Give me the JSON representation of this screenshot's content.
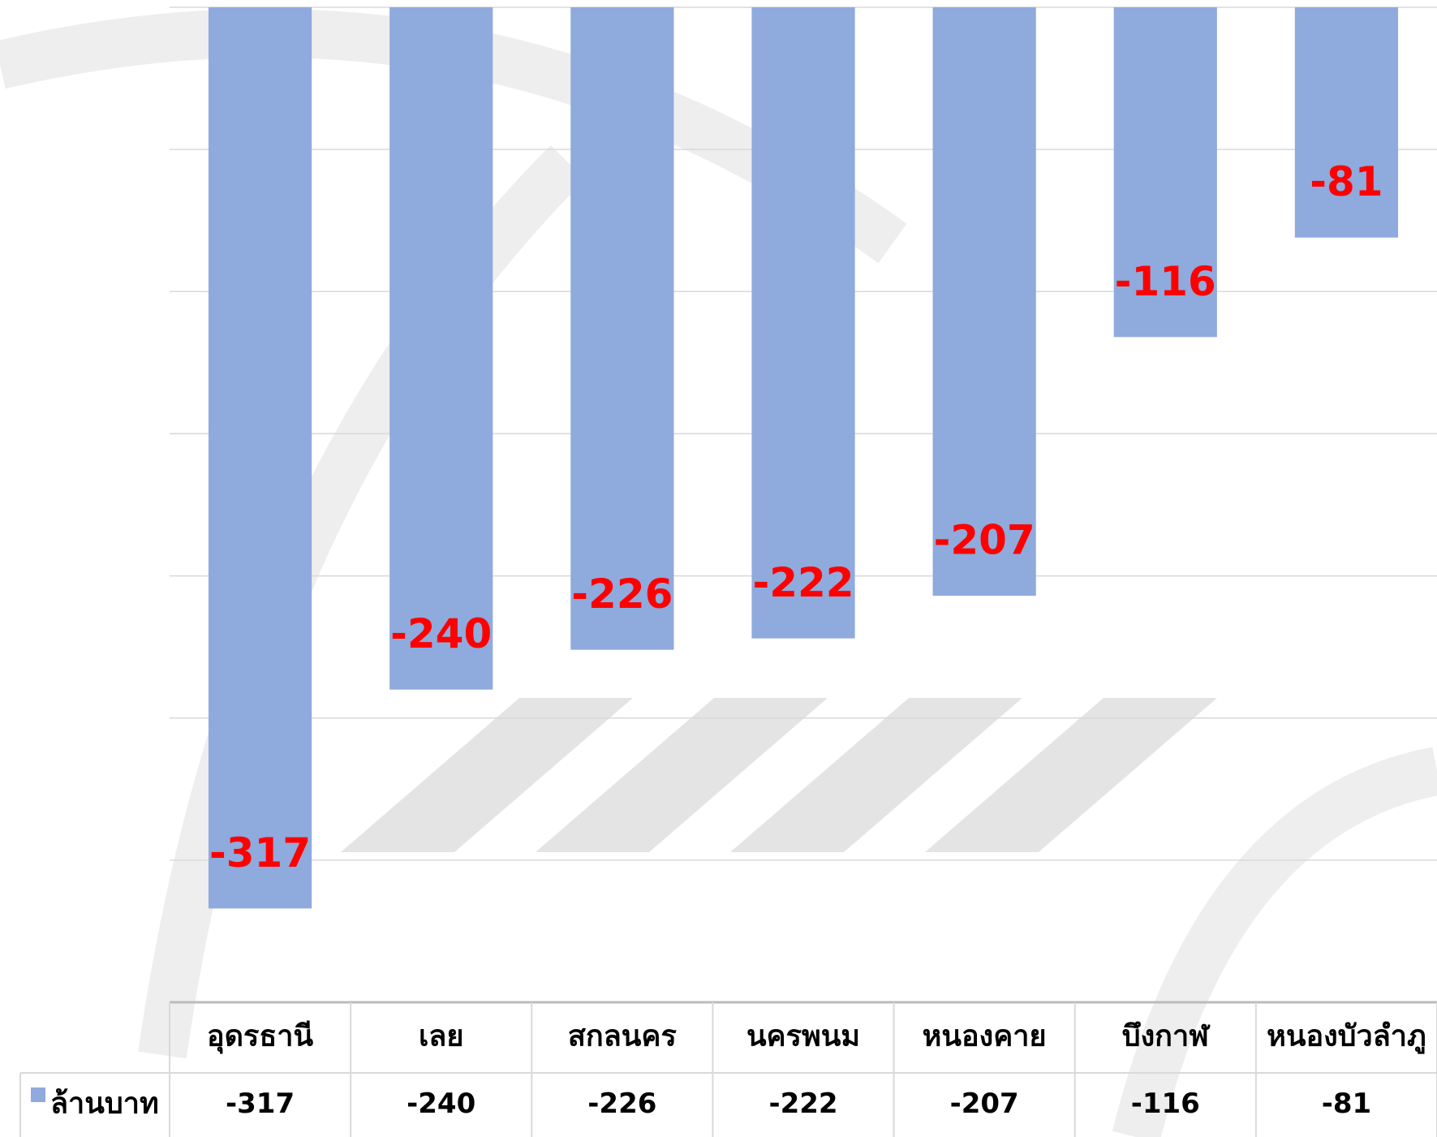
{
  "chart_data": {
    "type": "bar",
    "categories": [
      "อุดรธานี",
      "เลย",
      "สกลนคร",
      "นครพนม",
      "หนองคาย",
      "บึงกาฬ",
      "หนองบัวลำภู"
    ],
    "series": [
      {
        "name": "ล้านบาท",
        "color": "#8faadc",
        "values": [
          -317,
          -240,
          -226,
          -222,
          -207,
          -116,
          -81
        ]
      }
    ],
    "label_color": "#ff0000",
    "ylim": [
      -350,
      0
    ],
    "yticks": [
      0,
      -50,
      -100,
      -150,
      -200,
      -250,
      -300,
      -350
    ],
    "grid": true
  }
}
